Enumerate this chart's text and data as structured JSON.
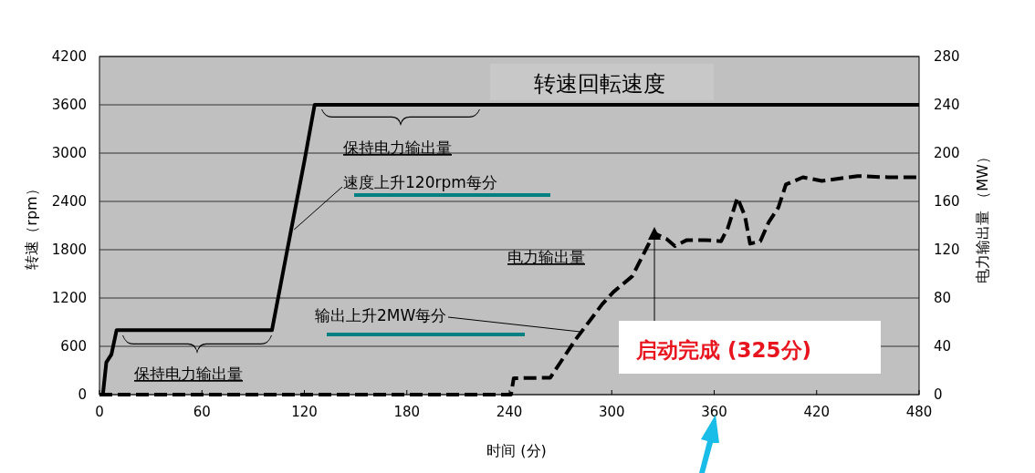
{
  "chart_data": {
    "type": "line",
    "title": "转速回転速度",
    "xlabel": "时间 (分)",
    "ylabel": "转速（rpm）",
    "y2label": "电力输出量 （MW）",
    "xlim": [
      0,
      480
    ],
    "xticks": [
      0,
      60,
      120,
      180,
      240,
      300,
      360,
      420,
      480
    ],
    "ylim": [
      0,
      4200
    ],
    "yticks": [
      0,
      600,
      1200,
      1800,
      2400,
      3000,
      3600,
      4200
    ],
    "y2lim": [
      0,
      280
    ],
    "y2ticks": [
      0,
      40,
      80,
      120,
      160,
      200,
      240,
      280
    ],
    "grid": "y",
    "series": [
      {
        "color": "#000000",
        "line_style": "solid",
        "x": [
          0,
          2,
          4,
          7,
          10,
          11,
          101,
          110,
          120,
          126,
          480
        ],
        "values": [
          0,
          0,
          400,
          500,
          800,
          800,
          800,
          1800,
          2900,
          3600,
          3600
        ]
      },
      {
        "color": "#000000",
        "line_style": "dashed",
        "axis": "y2",
        "x": [
          0,
          241,
          242.6,
          264,
          278.5,
          294.5,
          301,
          312,
          321,
          325,
          332,
          337,
          344,
          355,
          364,
          368,
          373.6,
          378,
          381,
          387,
          392,
          397.6,
          402,
          412,
          423,
          444,
          462,
          480
        ],
        "values": [
          0,
          0,
          13.6,
          14,
          45,
          75,
          85,
          98,
          123,
          133.6,
          129,
          123,
          128,
          128,
          127,
          138,
          163,
          148,
          125,
          127,
          143,
          155,
          174,
          180,
          177,
          181,
          180,
          180
        ]
      }
    ],
    "annotations": [
      "保持电力输出量",
      "保持电力输出量",
      {
        "text": "速度上升120rpm每分",
        "x": 114,
        "y": 2050
      },
      "电力输出量",
      {
        "text": "输出上升2MW每分",
        "x": 282,
        "y": 780
      },
      {
        "text": "启动完成 (325分)",
        "x": 325,
        "y": 2004
      }
    ]
  }
}
